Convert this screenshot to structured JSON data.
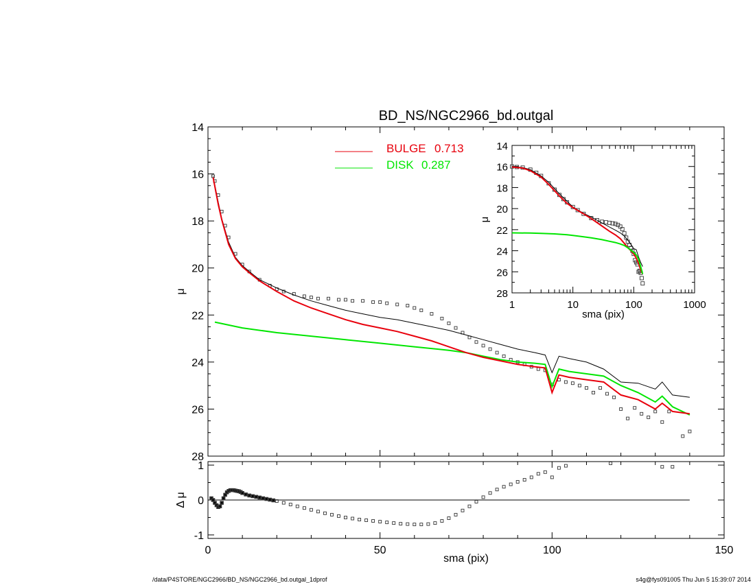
{
  "colors": {
    "bulge": "#e8000c",
    "disk": "#00e600",
    "model": "#000000",
    "data": "#333333",
    "frame": "#000000"
  },
  "footer": {
    "left": "/data/P4STORE/NGC2966/BD_NS/NGC2966_bd.outgal_1dprof",
    "right": "s4g@fys091005  Thu Jun  5 15:39:07 2014"
  },
  "chart_data": [
    {
      "type": "line",
      "title": "BD_NS/NGC2966_bd.outgal",
      "xlabel": "",
      "ylabel": "μ",
      "xlim": [
        0,
        150
      ],
      "ylim": [
        28,
        14
      ],
      "y_inverted": true,
      "x_ticks": [
        0,
        50,
        100,
        150
      ],
      "y_ticks": [
        14,
        16,
        18,
        20,
        22,
        24,
        26,
        28
      ],
      "legend": [
        {
          "label": "BULGE",
          "value": "0.713",
          "color": "#e8000c"
        },
        {
          "label": "DISK",
          "value": "0.287",
          "color": "#00e600"
        }
      ],
      "legend_placement": "top-center",
      "series": [
        {
          "name": "BULGE",
          "color": "#e8000c",
          "style": "line",
          "x": [
            1.5,
            3,
            4,
            6,
            8,
            10,
            12,
            15,
            20,
            25,
            30,
            35,
            40,
            45,
            50,
            55,
            60,
            65,
            70,
            75,
            80,
            85,
            90,
            95,
            98,
            100,
            102,
            105,
            110,
            115,
            120,
            125,
            130,
            132,
            135,
            140
          ],
          "y": [
            16.15,
            17.3,
            17.95,
            19.0,
            19.6,
            19.95,
            20.2,
            20.55,
            21.0,
            21.4,
            21.7,
            21.95,
            22.2,
            22.4,
            22.55,
            22.7,
            22.9,
            23.1,
            23.35,
            23.6,
            23.8,
            23.95,
            24.1,
            24.2,
            24.25,
            25.3,
            24.55,
            24.65,
            24.75,
            24.85,
            25.4,
            25.6,
            26.0,
            25.75,
            26.1,
            26.2
          ]
        },
        {
          "name": "DISK",
          "color": "#00e600",
          "style": "line",
          "x": [
            2,
            10,
            20,
            30,
            40,
            50,
            60,
            70,
            75,
            80,
            85,
            90,
            95,
            98,
            100,
            102,
            105,
            110,
            115,
            120,
            125,
            130,
            132,
            135,
            140
          ],
          "y": [
            22.3,
            22.55,
            22.75,
            22.9,
            23.05,
            23.2,
            23.35,
            23.5,
            23.6,
            23.75,
            23.9,
            24.0,
            24.05,
            24.1,
            25.05,
            24.3,
            24.4,
            24.5,
            24.6,
            25.0,
            25.3,
            25.7,
            25.45,
            25.9,
            26.25
          ]
        },
        {
          "name": "",
          "color": "#000000",
          "style": "thin-line",
          "x": [
            1.5,
            3,
            4,
            6,
            8,
            10,
            12,
            15,
            20,
            25,
            30,
            35,
            40,
            45,
            50,
            55,
            60,
            65,
            70,
            75,
            80,
            85,
            90,
            95,
            98,
            100,
            102,
            105,
            110,
            115,
            120,
            125,
            130,
            132,
            135,
            140
          ],
          "y": [
            16.1,
            17.2,
            17.9,
            18.9,
            19.55,
            19.9,
            20.15,
            20.5,
            20.85,
            21.15,
            21.4,
            21.6,
            21.8,
            21.95,
            22.1,
            22.2,
            22.35,
            22.5,
            22.65,
            22.85,
            23.05,
            23.25,
            23.45,
            23.6,
            23.7,
            24.45,
            23.75,
            23.85,
            24.0,
            24.3,
            24.85,
            24.9,
            25.15,
            24.85,
            25.4,
            25.5
          ]
        },
        {
          "name": "",
          "color": "#333333",
          "style": "markers",
          "x": [
            1.5,
            2,
            3,
            4,
            5,
            6,
            8,
            10,
            12,
            15,
            18,
            20,
            22,
            25,
            28,
            30,
            32,
            35,
            38,
            40,
            42,
            45,
            48,
            50,
            52,
            55,
            58,
            60,
            62,
            65,
            68,
            70,
            72,
            74,
            76,
            78,
            80,
            82,
            84,
            86,
            88,
            90,
            92,
            94,
            96,
            98,
            100,
            102,
            104,
            106,
            108,
            110,
            112,
            114,
            116,
            118,
            120,
            122,
            124,
            126,
            128,
            130,
            132,
            134,
            138,
            140
          ],
          "y": [
            16.1,
            16.3,
            16.9,
            17.6,
            18.2,
            18.7,
            19.4,
            19.85,
            20.15,
            20.5,
            20.75,
            20.9,
            21.0,
            21.1,
            21.2,
            21.25,
            21.3,
            21.3,
            21.35,
            21.35,
            21.4,
            21.4,
            21.45,
            21.45,
            21.5,
            21.55,
            21.6,
            21.7,
            21.8,
            21.95,
            22.15,
            22.35,
            22.55,
            22.75,
            22.95,
            23.15,
            23.3,
            23.45,
            23.6,
            23.75,
            23.9,
            24.0,
            24.1,
            24.2,
            24.3,
            24.35,
            24.95,
            24.75,
            24.85,
            24.9,
            25.0,
            25.1,
            25.3,
            25.1,
            25.35,
            25.5,
            26.0,
            26.4,
            25.95,
            26.2,
            26.35,
            26.1,
            26.55,
            26.1,
            27.15,
            26.95
          ]
        }
      ]
    },
    {
      "type": "scatter",
      "title": "",
      "xlabel": "sma (pix)",
      "ylabel": "Δ μ",
      "xlim": [
        0,
        150
      ],
      "ylim": [
        -1.1,
        1.1
      ],
      "x_ticks": [
        0,
        50,
        100,
        150
      ],
      "y_ticks": [
        1,
        0,
        -1
      ],
      "reference_line": {
        "y": 0,
        "x_range": [
          0,
          140
        ]
      },
      "series": [
        {
          "name": "",
          "color": "#000000",
          "style": "markers",
          "x": [
            1,
            1.5,
            2,
            2.5,
            3,
            3.5,
            4,
            4.5,
            5,
            5.5,
            6,
            6.5,
            7,
            7.5,
            8,
            8.5,
            9,
            9.5,
            10,
            11,
            12,
            13,
            14,
            15,
            16,
            17,
            18,
            19,
            20,
            22,
            24,
            26,
            28,
            30,
            32,
            34,
            36,
            38,
            40,
            42,
            44,
            46,
            48,
            50,
            52,
            54,
            56,
            58,
            60,
            62,
            64,
            66,
            68,
            70,
            72,
            74,
            76,
            78,
            80,
            82,
            84,
            86,
            88,
            90,
            92,
            94,
            96,
            98,
            100,
            102,
            104,
            117,
            132,
            135
          ],
          "y": [
            0.05,
            0.0,
            -0.08,
            -0.15,
            -0.2,
            -0.18,
            -0.08,
            0.05,
            0.15,
            0.22,
            0.26,
            0.28,
            0.28,
            0.28,
            0.27,
            0.26,
            0.25,
            0.23,
            0.2,
            0.16,
            0.13,
            0.11,
            0.09,
            0.07,
            0.05,
            0.03,
            0.01,
            -0.01,
            -0.03,
            -0.08,
            -0.13,
            -0.18,
            -0.23,
            -0.28,
            -0.33,
            -0.38,
            -0.42,
            -0.46,
            -0.5,
            -0.53,
            -0.56,
            -0.58,
            -0.6,
            -0.62,
            -0.64,
            -0.66,
            -0.68,
            -0.69,
            -0.7,
            -0.7,
            -0.69,
            -0.66,
            -0.6,
            -0.52,
            -0.42,
            -0.3,
            -0.18,
            -0.05,
            0.08,
            0.2,
            0.3,
            0.38,
            0.45,
            0.52,
            0.58,
            0.65,
            0.75,
            0.8,
            0.65,
            0.92,
            0.98,
            1.05,
            0.95,
            0.95
          ]
        }
      ]
    },
    {
      "type": "line",
      "title": "",
      "xlabel": "sma (pix)",
      "ylabel": "μ",
      "x_scale": "log",
      "xlim": [
        1,
        1000
      ],
      "ylim": [
        28,
        14
      ],
      "y_inverted": true,
      "x_ticks": [
        1,
        10,
        100,
        1000
      ],
      "x_tick_labels": [
        "1",
        "10",
        "100",
        "1000"
      ],
      "y_ticks": [
        14,
        16,
        18,
        20,
        22,
        24,
        26,
        28
      ],
      "series": [
        {
          "name": "",
          "color": "#333333",
          "style": "markers",
          "x": [
            1.0,
            1.2,
            1.5,
            2,
            2.5,
            3,
            4,
            5,
            6,
            7,
            8,
            10,
            12,
            15,
            20,
            25,
            30,
            35,
            40,
            45,
            50,
            55,
            60,
            65,
            70,
            75,
            80,
            85,
            90,
            95,
            100,
            105,
            110,
            115,
            120,
            125,
            130,
            135,
            140
          ],
          "y": [
            16.0,
            16.05,
            16.1,
            16.3,
            16.6,
            16.9,
            17.6,
            18.2,
            18.7,
            19.1,
            19.4,
            19.85,
            20.15,
            20.5,
            20.9,
            21.1,
            21.25,
            21.3,
            21.35,
            21.4,
            21.45,
            21.55,
            21.7,
            21.95,
            22.35,
            22.75,
            23.15,
            23.45,
            23.75,
            24.0,
            24.3,
            24.9,
            25.1,
            25.3,
            26.0,
            25.9,
            26.1,
            26.6,
            27.1
          ]
        },
        {
          "name": "",
          "color": "#000000",
          "style": "thin-line",
          "x": [
            1.0,
            1.5,
            2,
            3,
            4,
            6,
            8,
            10,
            15,
            20,
            30,
            40,
            50,
            60,
            70,
            80,
            90,
            100,
            110,
            120,
            130,
            140
          ],
          "y": [
            16.0,
            16.1,
            16.3,
            16.9,
            17.5,
            18.6,
            19.3,
            19.85,
            20.45,
            20.8,
            21.35,
            21.75,
            22.05,
            22.3,
            22.6,
            23.0,
            23.4,
            23.8,
            23.9,
            24.6,
            25.1,
            25.5
          ]
        },
        {
          "name": "BULGE",
          "color": "#e8000c",
          "style": "line",
          "x": [
            1.0,
            1.5,
            2,
            3,
            4,
            6,
            8,
            10,
            15,
            20,
            30,
            40,
            50,
            60,
            70,
            80,
            90,
            100,
            110,
            120,
            130,
            140
          ],
          "y": [
            16.05,
            16.15,
            16.4,
            17.0,
            17.7,
            18.8,
            19.5,
            19.9,
            20.5,
            20.95,
            21.65,
            22.15,
            22.5,
            22.85,
            23.3,
            23.7,
            24.0,
            24.3,
            24.7,
            25.2,
            25.8,
            26.2
          ]
        },
        {
          "name": "DISK",
          "color": "#00e600",
          "style": "line",
          "x": [
            1.0,
            2,
            3,
            5,
            8,
            10,
            15,
            20,
            30,
            40,
            50,
            60,
            70,
            80,
            90,
            100,
            110,
            120,
            130,
            140
          ],
          "y": [
            22.3,
            22.32,
            22.35,
            22.4,
            22.48,
            22.55,
            22.68,
            22.78,
            22.95,
            23.1,
            23.22,
            23.36,
            23.5,
            23.72,
            23.95,
            24.15,
            24.4,
            24.8,
            25.5,
            26.2
          ]
        }
      ]
    }
  ]
}
